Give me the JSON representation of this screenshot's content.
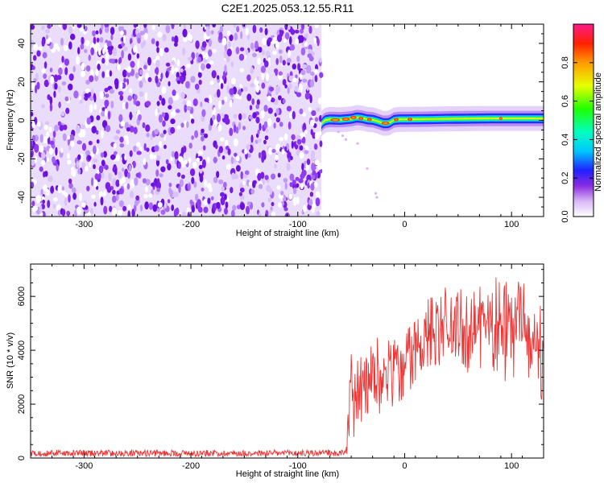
{
  "title": "C2E1.2025.053.12.55.R11",
  "chart_data": [
    {
      "type": "heatmap",
      "xlabel": "Height of straight line (km)",
      "ylabel": "Frequency (Hz)",
      "xlim": [
        -350,
        130
      ],
      "ylim": [
        -50,
        50
      ],
      "xticks": [
        -300,
        -200,
        -100,
        0,
        100
      ],
      "yticks": [
        -40,
        -20,
        0,
        20,
        40
      ],
      "noise_region_end_km": -78,
      "signal_line": {
        "x": [
          -78,
          -75,
          -70,
          -60,
          -50,
          -45,
          -40,
          -35,
          -30,
          -25,
          -20,
          -15,
          -10,
          -5,
          0,
          20,
          40,
          60,
          80,
          100,
          130
        ],
        "y": [
          -2,
          0,
          0.5,
          0.3,
          0.8,
          1.5,
          1.2,
          0.5,
          0.3,
          -0.5,
          -1.5,
          -1.5,
          0.2,
          0.5,
          0.5,
          0.6,
          0.8,
          0.9,
          1.0,
          1.0,
          1.0
        ]
      },
      "colorbar": {
        "label": "Normalized spectral amplitude",
        "range": [
          0,
          1
        ],
        "ticks": [
          0.0,
          0.2,
          0.4,
          0.6,
          0.8
        ]
      }
    },
    {
      "type": "line",
      "xlabel": "Height of straight line (km)",
      "ylabel": "SNR (10 * v/v)",
      "xlim": [
        -350,
        130
      ],
      "ylim": [
        0,
        7200
      ],
      "xticks": [
        -300,
        -200,
        -100,
        0,
        100
      ],
      "yticks": [
        0,
        2000,
        4000,
        6000
      ],
      "color": "#ee3333",
      "envelope": {
        "x": [
          -350,
          -100,
          -55,
          -50,
          -45,
          -40,
          -30,
          -20,
          -10,
          0,
          10,
          20,
          30,
          40,
          50,
          60,
          70,
          80,
          90,
          100,
          110,
          120,
          130
        ],
        "min": [
          60,
          60,
          60,
          400,
          700,
          1000,
          1300,
          1700,
          1900,
          2100,
          2700,
          3400,
          3300,
          3800,
          3600,
          3000,
          3300,
          3200,
          3000,
          2600,
          2700,
          2000,
          2200
        ],
        "max": [
          300,
          300,
          320,
          4100,
          3600,
          4000,
          4300,
          4700,
          4600,
          4900,
          5400,
          6000,
          6300,
          6500,
          6600,
          6500,
          6500,
          6600,
          7050,
          6700,
          6600,
          6500,
          6400
        ]
      }
    }
  ]
}
